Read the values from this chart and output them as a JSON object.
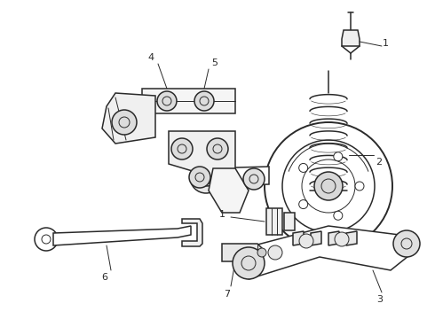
{
  "bg_color": "#ffffff",
  "line_color": "#2a2a2a",
  "fig_width": 4.9,
  "fig_height": 3.6,
  "dpi": 100
}
